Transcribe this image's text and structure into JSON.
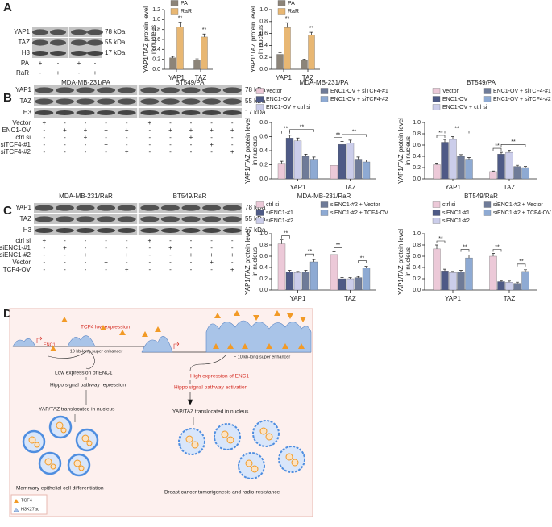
{
  "panel_labels": [
    "A",
    "B",
    "C",
    "D"
  ],
  "blots": [
    {
      "headers": [],
      "proteins": [
        "YAP1",
        "TAZ",
        "H3"
      ],
      "sizes": [
        "78 kDa",
        "55 kDa",
        "17 kDa"
      ],
      "conditions": [
        {
          "name": "PA",
          "signs": [
            "+",
            "-",
            "+",
            "-"
          ]
        },
        {
          "name": "RaR",
          "signs": [
            "-",
            "+",
            "-",
            "+"
          ]
        }
      ]
    },
    {
      "headers": [
        "MDA-MB-231/PA",
        "BT549/PA"
      ],
      "proteins": [
        "YAP1",
        "TAZ",
        "H3"
      ],
      "sizes": [
        "78 kDa",
        "55 kDa",
        "17 kDa"
      ],
      "conditions": [
        {
          "name": "Vector",
          "signs": [
            "+",
            "-",
            "-",
            "-",
            "-",
            "+",
            "-",
            "-",
            "-",
            "-"
          ]
        },
        {
          "name": "ENC1-OV",
          "signs": [
            "-",
            "+",
            "+",
            "+",
            "+",
            "-",
            "+",
            "+",
            "+",
            "+"
          ]
        },
        {
          "name": "ctrl si",
          "signs": [
            "-",
            "-",
            "+",
            "-",
            "-",
            "-",
            "-",
            "+",
            "-",
            "-"
          ]
        },
        {
          "name": "siTCF4-#1",
          "signs": [
            "-",
            "-",
            "-",
            "+",
            "-",
            "-",
            "-",
            "-",
            "+",
            "-"
          ]
        },
        {
          "name": "siTCF4-#2",
          "signs": [
            "-",
            "-",
            "-",
            "-",
            "+",
            "-",
            "-",
            "-",
            "-",
            "+"
          ]
        }
      ]
    },
    {
      "headers": [
        "MDA-MB-231/RaR",
        "BT549/RaR"
      ],
      "proteins": [
        "YAP1",
        "TAZ",
        "H3"
      ],
      "sizes": [
        "78 kDa",
        "55 kDa",
        "17 kDa"
      ],
      "conditions": [
        {
          "name": "ctrl si",
          "signs": [
            "+",
            "-",
            "-",
            "-",
            "-",
            "+",
            "-",
            "-",
            "-",
            "-"
          ]
        },
        {
          "name": "siENC1-#1",
          "signs": [
            "-",
            "+",
            "-",
            "-",
            "-",
            "-",
            "+",
            "-",
            "-",
            "-"
          ]
        },
        {
          "name": "siENC1-#2",
          "signs": [
            "-",
            "-",
            "+",
            "+",
            "+",
            "-",
            "-",
            "+",
            "+",
            "+"
          ]
        },
        {
          "name": "Vector",
          "signs": [
            "-",
            "-",
            "-",
            "+",
            "-",
            "-",
            "-",
            "-",
            "+",
            "-"
          ]
        },
        {
          "name": "TCF4-OV",
          "signs": [
            "-",
            "-",
            "-",
            "-",
            "+",
            "-",
            "-",
            "-",
            "-",
            "+"
          ]
        }
      ]
    }
  ],
  "chart_data": [
    {
      "type": "bar",
      "ylabel": [
        "YAP1/TAZ protein level",
        "in nucleus"
      ],
      "categories": [
        "YAP1",
        "TAZ"
      ],
      "series": [
        {
          "name": "PA",
          "color": "#8c8479",
          "values": [
            0.23,
            0.19
          ],
          "errors": [
            0.03,
            0.02
          ]
        },
        {
          "name": "RaR",
          "color": "#e8b773",
          "values": [
            0.85,
            0.65
          ],
          "errors": [
            0.1,
            0.06
          ]
        }
      ],
      "ylim": [
        0,
        1.2
      ],
      "yticks": [
        {
          "value": 0,
          "label": "0.0"
        },
        0.2,
        0.4,
        0.6,
        0.8,
        {
          "value": 1,
          "label": "1.0"
        },
        1.2
      ],
      "significance": [
        "**",
        "**"
      ]
    },
    {
      "type": "bar",
      "ylabel": [
        "YAP1/TAZ protein level",
        "in nucleus"
      ],
      "categories": [
        "YAP1",
        "TAZ"
      ],
      "series": [
        {
          "name": "PA",
          "color": "#8c8479",
          "values": [
            0.25,
            0.15
          ],
          "errors": [
            0.03,
            0.02
          ]
        },
        {
          "name": "RaR",
          "color": "#e8b773",
          "values": [
            0.7,
            0.57
          ],
          "errors": [
            0.08,
            0.05
          ]
        }
      ],
      "ylim": [
        0,
        1
      ],
      "yticks": [
        {
          "value": 0,
          "label": "0.0"
        },
        0.2,
        0.4,
        0.6,
        0.8,
        {
          "value": 1,
          "label": "1.0"
        }
      ],
      "significance": [
        "**",
        "**"
      ]
    },
    {
      "type": "bar",
      "title": "MDA-MB-231/PA",
      "ylabel": [
        "YAP1/TAZ protein level",
        "in nucleus"
      ],
      "categories": [
        "YAP1",
        "TAZ"
      ],
      "series": [
        {
          "name": "Vector",
          "color": "#ecc9d8",
          "values": [
            0.22,
            0.19
          ],
          "errors": [
            0.03,
            0.02
          ]
        },
        {
          "name": "ENC1-OV",
          "color": "#4e5a86",
          "values": [
            0.58,
            0.49
          ],
          "errors": [
            0.04,
            0.04
          ]
        },
        {
          "name": "ENC1-OV + ctrl si",
          "color": "#cbcdea",
          "values": [
            0.54,
            0.51
          ],
          "errors": [
            0.04,
            0.04
          ]
        },
        {
          "name": "ENC1-OV + siTCF4-#1",
          "color": "#6f7b98",
          "values": [
            0.32,
            0.28
          ],
          "errors": [
            0.03,
            0.03
          ]
        },
        {
          "name": "ENC1-OV + siTCF4-#2",
          "color": "#8eaad3",
          "values": [
            0.28,
            0.24
          ],
          "errors": [
            0.03,
            0.03
          ]
        }
      ],
      "ylim": [
        0,
        0.8
      ],
      "yticks": [
        {
          "value": 0,
          "label": "0.0"
        },
        0.2,
        0.4,
        0.6,
        0.8
      ],
      "significance": [
        "**",
        "**",
        "**",
        "**"
      ]
    },
    {
      "type": "bar",
      "title": "BT549/PA",
      "ylabel": [
        "YAP1/TAZ protein level",
        "in nucleus"
      ],
      "categories": [
        "YAP1",
        "TAZ"
      ],
      "series": [
        {
          "name": "Vector",
          "color": "#ecc9d8",
          "values": [
            0.25,
            0.13
          ],
          "errors": [
            0.03,
            0.01
          ]
        },
        {
          "name": "ENC1-OV",
          "color": "#4e5a86",
          "values": [
            0.65,
            0.44
          ],
          "errors": [
            0.05,
            0.03
          ]
        },
        {
          "name": "ENC1-OV + ctrl si",
          "color": "#cbcdea",
          "values": [
            0.7,
            0.47
          ],
          "errors": [
            0.05,
            0.04
          ]
        },
        {
          "name": "ENC1-OV + siTCF4-#1",
          "color": "#6f7b98",
          "values": [
            0.4,
            0.22
          ],
          "errors": [
            0.03,
            0.02
          ]
        },
        {
          "name": "ENC1-OV + siTCF4-#2",
          "color": "#8eaad3",
          "values": [
            0.35,
            0.2
          ],
          "errors": [
            0.03,
            0.02
          ]
        }
      ],
      "ylim": [
        0,
        1
      ],
      "yticks": [
        {
          "value": 0,
          "label": "0.0"
        },
        0.2,
        0.4,
        0.6,
        0.8,
        {
          "value": 1,
          "label": "1.0"
        }
      ],
      "significance": [
        "**",
        "**",
        "**",
        "**"
      ]
    },
    {
      "type": "bar",
      "title": "MDA-MB-231/RaR",
      "ylabel": [
        "YAP1/TAZ protein level",
        "in nucleus"
      ],
      "categories": [
        "YAP1",
        "TAZ"
      ],
      "series": [
        {
          "name": "ctrl si",
          "color": "#ecc9d8",
          "values": [
            0.82,
            0.63
          ],
          "errors": [
            0.07,
            0.05
          ]
        },
        {
          "name": "siENC1-#1",
          "color": "#4e5a86",
          "values": [
            0.32,
            0.2
          ],
          "errors": [
            0.03,
            0.02
          ]
        },
        {
          "name": "siENC1-#2",
          "color": "#cbcdea",
          "values": [
            0.31,
            0.2
          ],
          "errors": [
            0.02,
            0.02
          ]
        },
        {
          "name": "siENC1-#2 + Vector",
          "color": "#6f7b98",
          "values": [
            0.32,
            0.22
          ],
          "errors": [
            0.03,
            0.02
          ]
        },
        {
          "name": "siENC1-#2 + TCF4-OV",
          "color": "#8eaad3",
          "values": [
            0.5,
            0.39
          ],
          "errors": [
            0.04,
            0.03
          ]
        }
      ],
      "ylim": [
        0,
        1
      ],
      "yticks": [
        {
          "value": 0,
          "label": "0.0"
        },
        0.2,
        0.4,
        0.6,
        0.8,
        {
          "value": 1,
          "label": "1.0"
        }
      ],
      "significance": [
        "**",
        "**",
        "**",
        "**"
      ]
    },
    {
      "type": "bar",
      "title": "BT549/RaR",
      "ylabel": [
        "YAP1/TAZ protein level",
        "in nucleus"
      ],
      "categories": [
        "YAP1",
        "TAZ"
      ],
      "series": [
        {
          "name": "ctrl si",
          "color": "#ecc9d8",
          "values": [
            0.73,
            0.6
          ],
          "errors": [
            0.07,
            0.05
          ]
        },
        {
          "name": "siENC1-#1",
          "color": "#4e5a86",
          "values": [
            0.34,
            0.15
          ],
          "errors": [
            0.03,
            0.02
          ]
        },
        {
          "name": "siENC1-#2",
          "color": "#cbcdea",
          "values": [
            0.31,
            0.14
          ],
          "errors": [
            0.02,
            0.02
          ]
        },
        {
          "name": "siENC1-#2 + Vector",
          "color": "#6f7b98",
          "values": [
            0.32,
            0.12
          ],
          "errors": [
            0.03,
            0.02
          ]
        },
        {
          "name": "siENC1-#2 + TCF4-OV",
          "color": "#8eaad3",
          "values": [
            0.57,
            0.33
          ],
          "errors": [
            0.05,
            0.03
          ]
        }
      ],
      "ylim": [
        0,
        1
      ],
      "yticks": [
        {
          "value": 0,
          "label": "0.0"
        },
        0.2,
        0.4,
        0.6,
        0.8,
        {
          "value": 1,
          "label": "1.0"
        }
      ],
      "significance": [
        "**",
        "**",
        "**",
        "**"
      ]
    }
  ],
  "diagram": {
    "tcf4_low": "TCF4 low expression",
    "gene": "ENC1",
    "enhancer_left": "~ 10 kb-long  super enhancer",
    "enhancer_right": "~ 10 kb-long  super enhancer",
    "left_steps": [
      "Low expression of ENC1",
      "Hippo signal pathway repression",
      "YAP/TAZ translocated in nucleus"
    ],
    "left_outcome": "Mammary epithelial cell differentiation",
    "right_steps": [
      "High expression of ENC1",
      "Hippo signal pathway activation",
      "YAP/TAZ translocated in nucleus"
    ],
    "right_outcome": "Breast cancer tumorigenesis and radio-resistance",
    "legend": [
      "TCF4",
      "H3K27ac"
    ]
  }
}
